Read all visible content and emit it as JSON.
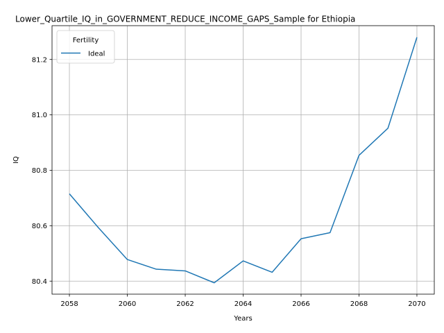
{
  "chart_data": {
    "type": "line",
    "title": "Lower_Quartile_IQ_in_GOVERNMENT_REDUCE_INCOME_GAPS_Sample for Ethiopia",
    "xlabel": "Years",
    "ylabel": "IQ",
    "xlim": [
      2057.4,
      2070.6
    ],
    "ylim": [
      80.353,
      81.322
    ],
    "xticks": [
      2058,
      2060,
      2062,
      2064,
      2066,
      2068,
      2070
    ],
    "yticks": [
      80.4,
      80.6,
      80.8,
      81.0,
      81.2
    ],
    "ytick_labels": [
      "80.4",
      "80.6",
      "80.8",
      "81.0",
      "81.2"
    ],
    "grid": true,
    "legend": {
      "title": "Fertility",
      "placement": "top-left"
    },
    "series": [
      {
        "name": "Ideal",
        "color": "#1f77b4",
        "x": [
          2058,
          2059,
          2060,
          2061,
          2062,
          2063,
          2064,
          2065,
          2066,
          2067,
          2068,
          2069,
          2070
        ],
        "y": [
          80.715,
          80.593,
          80.478,
          80.443,
          80.437,
          80.394,
          80.473,
          80.432,
          80.553,
          80.575,
          80.854,
          80.952,
          81.28
        ]
      }
    ]
  }
}
